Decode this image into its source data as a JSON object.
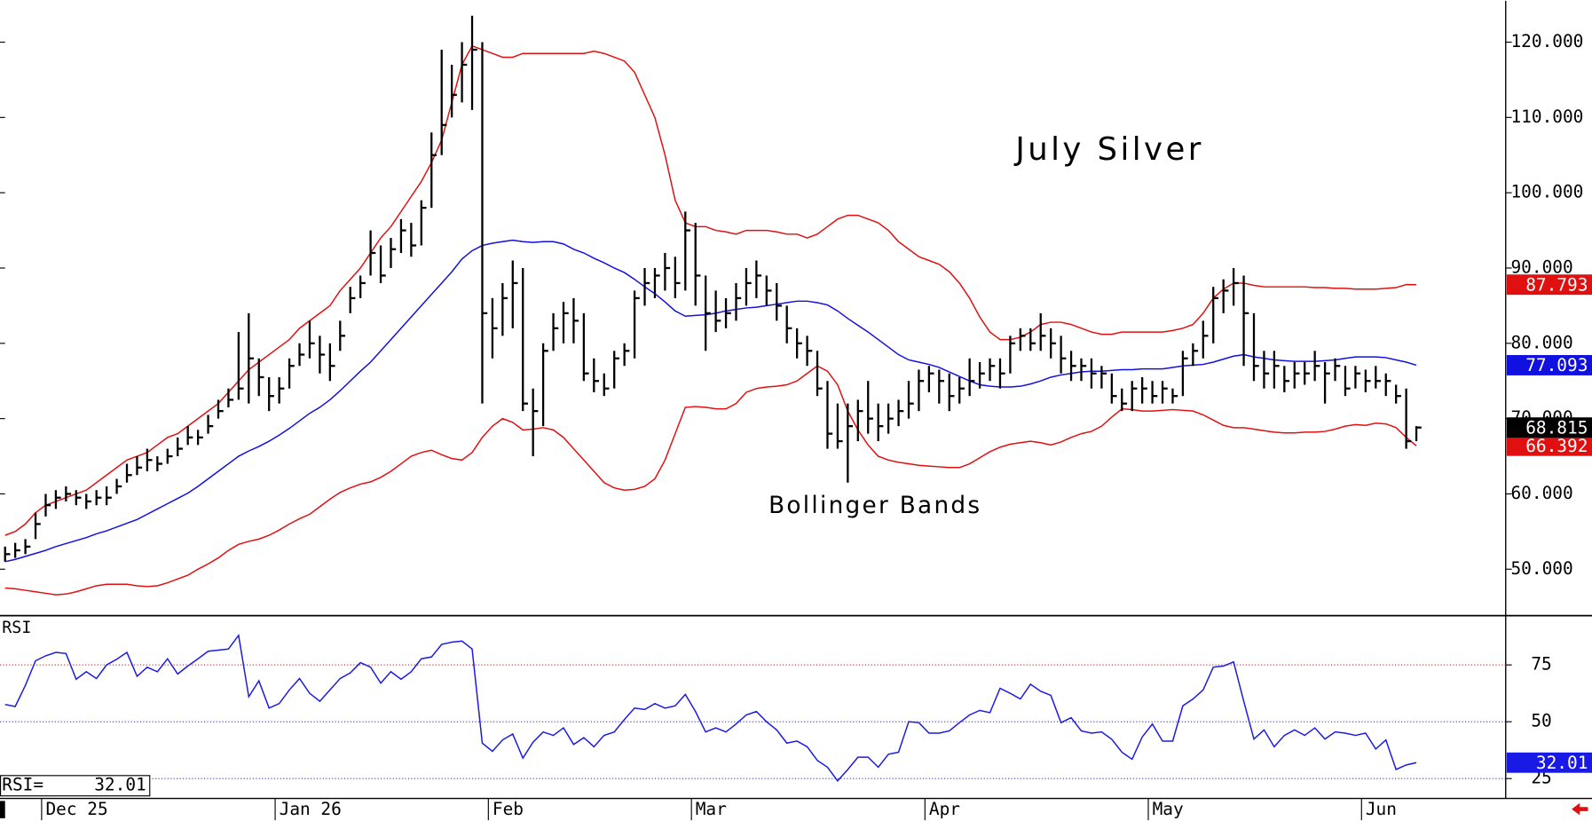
{
  "chart_data": [
    {
      "type": "ohlc",
      "title": "July Silver",
      "annotation": "Bollinger Bands",
      "annotation_color": "#e01010",
      "color": "#000000",
      "ylim": [
        43.9,
        125.5
      ],
      "yticks": [
        {
          "value": 50,
          "label": "50.000"
        },
        {
          "value": 60,
          "label": "60.000"
        },
        {
          "value": 70,
          "label": "70.000"
        },
        {
          "value": 80,
          "label": "80.000"
        },
        {
          "value": 90,
          "label": "90.000"
        },
        {
          "value": 100,
          "label": "100.000"
        },
        {
          "value": 110,
          "label": "110.000"
        },
        {
          "value": 120,
          "label": "120.000"
        }
      ],
      "categories": [
        null,
        null,
        null,
        null,
        "Dec 25",
        null,
        null,
        null,
        null,
        null,
        null,
        null,
        null,
        null,
        null,
        null,
        null,
        null,
        null,
        null,
        null,
        null,
        null,
        null,
        null,
        null,
        null,
        "Jan 26",
        null,
        null,
        null,
        null,
        null,
        null,
        null,
        null,
        null,
        null,
        null,
        null,
        null,
        null,
        null,
        null,
        null,
        null,
        null,
        null,
        "Feb",
        null,
        null,
        null,
        null,
        null,
        null,
        null,
        null,
        null,
        null,
        null,
        null,
        null,
        null,
        null,
        null,
        null,
        null,
        null,
        "Mar",
        null,
        null,
        null,
        null,
        null,
        null,
        null,
        null,
        null,
        null,
        null,
        null,
        null,
        null,
        null,
        null,
        null,
        null,
        null,
        null,
        null,
        null,
        "Apr",
        null,
        null,
        null,
        null,
        null,
        null,
        null,
        null,
        null,
        null,
        null,
        null,
        null,
        null,
        null,
        null,
        null,
        null,
        null,
        null,
        null,
        "May",
        null,
        null,
        null,
        null,
        null,
        null,
        null,
        null,
        null,
        null,
        null,
        null,
        null,
        null,
        null,
        null,
        null,
        null,
        null,
        null,
        "Jun",
        null,
        null,
        null,
        null,
        null
      ],
      "high": [
        53,
        53.5,
        54,
        57.5,
        60,
        60.5,
        61,
        60.5,
        60,
        60.5,
        61,
        62,
        64,
        65,
        66,
        65,
        66,
        67.5,
        69,
        68.5,
        70.5,
        72.5,
        74,
        81.5,
        84,
        78,
        75.5,
        75.5,
        78,
        80,
        83,
        81,
        80,
        83,
        87.5,
        89,
        95,
        93,
        94,
        96.5,
        96,
        99,
        108,
        119,
        117,
        120,
        123.5,
        120,
        86,
        88,
        91,
        90,
        74,
        80,
        84,
        85.5,
        86,
        84,
        78,
        76,
        79,
        80,
        87,
        90,
        90,
        92,
        91.5,
        97.5,
        96,
        89,
        87,
        86,
        88,
        90,
        91,
        89,
        88,
        85,
        82,
        81,
        79,
        75,
        72,
        72,
        72.5,
        75,
        72,
        72,
        72.5,
        75,
        76.5,
        77,
        76.5,
        76,
        75.5,
        78,
        77.5,
        78,
        78,
        81,
        82,
        82,
        84,
        82,
        81,
        79,
        78,
        78,
        77,
        76,
        74,
        75,
        75.5,
        75,
        75,
        74,
        79,
        80,
        83,
        87.5,
        88.5,
        90,
        89,
        84,
        79,
        79,
        77,
        77.5,
        77.5,
        79,
        77.5,
        78,
        77,
        77,
        76.5,
        77,
        76,
        74.5,
        74,
        69
      ],
      "low": [
        51,
        51.5,
        52,
        54,
        57,
        58,
        59,
        58.5,
        58,
        58.5,
        58.5,
        60,
        61.5,
        62.5,
        63,
        63,
        64,
        65,
        66.5,
        66.5,
        68,
        70,
        71.5,
        72.5,
        72,
        73,
        71,
        72,
        74,
        77,
        78,
        76,
        75,
        79,
        84,
        86,
        89,
        88,
        90,
        92,
        91.5,
        93,
        98,
        105,
        110,
        112,
        111,
        72,
        78,
        81,
        82,
        71,
        65,
        69,
        79,
        80,
        80,
        75,
        73.5,
        73,
        74,
        77,
        78,
        85,
        86,
        87,
        86,
        87,
        85,
        79,
        81.5,
        82,
        83,
        85,
        86,
        85,
        83,
        80,
        78,
        77,
        73,
        66,
        66,
        61.5,
        67,
        68,
        67,
        68,
        69,
        70,
        71,
        73.5,
        72,
        71,
        72,
        73,
        74,
        75,
        74,
        76,
        79,
        79,
        79,
        78,
        76,
        75,
        75,
        74,
        74,
        72,
        71,
        71,
        72,
        72,
        72,
        72,
        73,
        77,
        78,
        80,
        84,
        85,
        77,
        75,
        74,
        74,
        73.5,
        74,
        74.5,
        75,
        72,
        75,
        73,
        74,
        73.5,
        74,
        73,
        72,
        66,
        67
      ],
      "close": [
        52,
        52.5,
        53,
        56,
        58.5,
        59.5,
        60,
        59.5,
        59,
        59.5,
        59.5,
        61,
        62.5,
        63.5,
        64.5,
        64,
        65,
        66,
        67.5,
        67.5,
        69,
        71,
        72.5,
        74,
        78,
        75.5,
        73,
        74,
        77,
        78.5,
        80,
        78.5,
        77,
        81,
        86,
        88,
        92,
        89,
        92.5,
        95,
        93,
        98,
        105,
        109,
        113,
        117,
        119,
        84,
        82,
        86,
        88,
        72,
        71,
        79,
        82,
        84,
        83,
        76,
        75,
        74,
        78,
        79,
        86,
        88,
        89,
        90,
        88,
        95,
        89,
        84,
        83,
        84,
        86,
        88,
        89,
        87,
        85,
        82,
        80,
        79,
        74,
        68,
        67,
        69,
        71,
        70,
        69,
        70,
        71,
        72,
        75,
        76,
        75,
        73,
        74,
        75,
        76,
        77,
        76,
        80,
        81,
        80,
        81,
        80,
        78,
        77,
        77,
        76,
        76,
        73,
        72,
        74,
        74,
        73,
        74,
        73,
        78,
        79,
        81,
        86,
        87,
        88,
        84,
        77,
        76,
        77,
        75,
        76,
        76,
        77,
        76,
        77,
        74,
        76,
        75,
        75,
        75,
        73,
        67,
        68.815
      ],
      "bands": [
        {
          "color": "#e01010",
          "values": [
            54.5,
            55,
            56,
            57.5,
            58.5,
            59,
            59.5,
            60,
            60.5,
            61.5,
            62.5,
            63.5,
            64.5,
            65,
            65.5,
            66.5,
            67.5,
            68,
            69,
            70,
            71,
            72,
            73.5,
            75,
            76.5,
            77.5,
            78.5,
            79.5,
            80.5,
            82,
            83,
            84,
            85,
            87,
            88.5,
            90,
            92,
            94,
            95.5,
            97.5,
            99.5,
            101.5,
            104,
            107,
            112,
            117,
            119.5,
            119,
            118.5,
            118,
            118,
            118.5,
            118.5,
            118.5,
            118.5,
            118.5,
            118.5,
            118.5,
            118.8,
            118.5,
            118,
            117.5,
            116,
            113,
            110,
            105,
            99,
            96,
            95.5,
            95.5,
            95,
            94.8,
            94.5,
            95,
            95,
            95,
            94.8,
            94.5,
            94.5,
            94,
            94.5,
            95.5,
            96.5,
            97,
            97,
            96.5,
            96,
            95,
            93.5,
            92.5,
            91.5,
            91,
            90.5,
            89.5,
            88,
            86,
            83.5,
            81.5,
            80.5,
            80.5,
            80.8,
            81.5,
            82.5,
            82.8,
            82.8,
            82.5,
            82,
            81.5,
            81.2,
            81.2,
            81.5,
            81.5,
            81.5,
            81.5,
            81.5,
            81.7,
            82,
            82.5,
            84,
            86,
            87.2,
            88,
            88,
            87.7,
            87.5,
            87.5,
            87.5,
            87.5,
            87.5,
            87.4,
            87.4,
            87.3,
            87.3,
            87.2,
            87.2,
            87.2,
            87.3,
            87.4,
            87.8,
            87.793
          ]
        },
        {
          "color": "#1010e0",
          "values": [
            51,
            51.3,
            51.7,
            52.1,
            52.5,
            53,
            53.4,
            53.8,
            54.2,
            54.7,
            55.1,
            55.6,
            56.1,
            56.6,
            57.3,
            58,
            58.7,
            59.4,
            60.1,
            61,
            62,
            63,
            64,
            65,
            65.7,
            66.3,
            67,
            67.8,
            68.7,
            69.7,
            70.7,
            71.5,
            72.5,
            73.7,
            75,
            76.3,
            77.5,
            79,
            80.5,
            82,
            83.5,
            85,
            86.5,
            88,
            89.5,
            91.2,
            92.3,
            93,
            93.3,
            93.5,
            93.7,
            93.5,
            93.4,
            93.5,
            93.5,
            93.2,
            92.5,
            92,
            91.3,
            90.7,
            90,
            89.4,
            88.5,
            87.5,
            86.6,
            85.5,
            84.3,
            83.6,
            83.7,
            83.8,
            84,
            84.3,
            84.5,
            84.7,
            84.8,
            85,
            85.2,
            85.4,
            85.6,
            85.6,
            85.4,
            85.1,
            84.3,
            83.3,
            82.4,
            81.5,
            80.5,
            79.5,
            78.5,
            77.8,
            77.5,
            77.2,
            76.8,
            76.2,
            75.6,
            75,
            74.5,
            74.3,
            74.2,
            74.2,
            74.3,
            74.6,
            75,
            75.5,
            75.8,
            76,
            76.2,
            76.3,
            76.3,
            76.4,
            76.5,
            76.5,
            76.6,
            76.6,
            76.6,
            76.8,
            77,
            77.1,
            77.2,
            77.5,
            77.9,
            78.3,
            78.5,
            78.2,
            78,
            77.8,
            77.7,
            77.6,
            77.6,
            77.6,
            77.7,
            77.8,
            78,
            78.2,
            78.2,
            78.2,
            78.1,
            77.8,
            77.5,
            77.093
          ]
        },
        {
          "color": "#e01010",
          "values": [
            47.5,
            47.4,
            47.2,
            47,
            46.8,
            46.6,
            46.7,
            47,
            47.4,
            47.8,
            48,
            48,
            48,
            47.8,
            47.7,
            47.8,
            48.2,
            48.7,
            49.2,
            50,
            50.7,
            51.5,
            52.5,
            53.3,
            53.7,
            54,
            54.5,
            55.2,
            56,
            56.7,
            57.3,
            58.3,
            59.3,
            60.2,
            60.8,
            61.3,
            61.6,
            62.2,
            63,
            64,
            65,
            65.5,
            65.8,
            65.2,
            64.7,
            64.5,
            65.5,
            67.5,
            69,
            70,
            69.5,
            68.5,
            68.6,
            68.8,
            68.5,
            67.5,
            66,
            64.5,
            63,
            61.5,
            60.8,
            60.5,
            60.6,
            61,
            62,
            64.5,
            68,
            71.5,
            71.6,
            71.5,
            71.3,
            71.3,
            72,
            73.5,
            74,
            74.2,
            74.3,
            74.5,
            75,
            76,
            77,
            76.3,
            74.5,
            71,
            68.5,
            66.5,
            65,
            64.5,
            64.2,
            64,
            63.8,
            63.7,
            63.6,
            63.5,
            63.5,
            64,
            64.8,
            65.6,
            66.2,
            66.6,
            66.8,
            67,
            66.8,
            66.5,
            66.9,
            67.5,
            68,
            68.3,
            69,
            70.2,
            71.3,
            71.2,
            71,
            71,
            71.1,
            71.2,
            71.1,
            71,
            70.5,
            69.8,
            69.1,
            68.8,
            68.8,
            68.6,
            68.4,
            68.2,
            68.1,
            68.1,
            68.2,
            68.2,
            68.3,
            68.6,
            69,
            69.2,
            69.1,
            69.4,
            69.3,
            68.8,
            67.5,
            66.392
          ]
        }
      ]
    },
    {
      "type": "line",
      "title": "RSI",
      "readout_label": "RSI=",
      "color": "#1a1ae6",
      "ylim": [
        16.5,
        96
      ],
      "yticks": [
        25,
        50,
        75
      ],
      "grid_colors": [
        "#3030e0",
        "#3030e0",
        "#e03030"
      ],
      "values": [
        57.6,
        56.7,
        66,
        76.8,
        79,
        80.5,
        80,
        68.7,
        72,
        69,
        75,
        77.5,
        80.5,
        70,
        74,
        72,
        77.7,
        71,
        74.5,
        77.7,
        81,
        81.5,
        82,
        88,
        61,
        68,
        56,
        58,
        64,
        69,
        62.5,
        59,
        64,
        69,
        71.5,
        76,
        74,
        67,
        72,
        68.7,
        72,
        77.7,
        78.5,
        84,
        85,
        85.5,
        82,
        40.6,
        37,
        42,
        44.6,
        34,
        41,
        45.5,
        44,
        47.3,
        40,
        43,
        39,
        44,
        45.5,
        51,
        56,
        55.4,
        58,
        56,
        57,
        62,
        54.5,
        45.5,
        47.3,
        45.5,
        49,
        53,
        54.5,
        50,
        46.4,
        40.6,
        41.5,
        39,
        33,
        30,
        24,
        29,
        34.4,
        34.4,
        30,
        35.7,
        36.6,
        50,
        49.6,
        45,
        45,
        46,
        49.6,
        53,
        55,
        54,
        64.7,
        62.5,
        60,
        66.5,
        63.4,
        61.6,
        49.6,
        51.8,
        46,
        45,
        45.5,
        42.3,
        36.6,
        33.5,
        43.3,
        49,
        41.5,
        41.5,
        57,
        60,
        64,
        74,
        74.5,
        76.3,
        59,
        42.4,
        46.4,
        39,
        44,
        46.4,
        44,
        47.3,
        42.4,
        45.5,
        45,
        44,
        45,
        38,
        42,
        29,
        31,
        32.01
      ]
    }
  ]
}
